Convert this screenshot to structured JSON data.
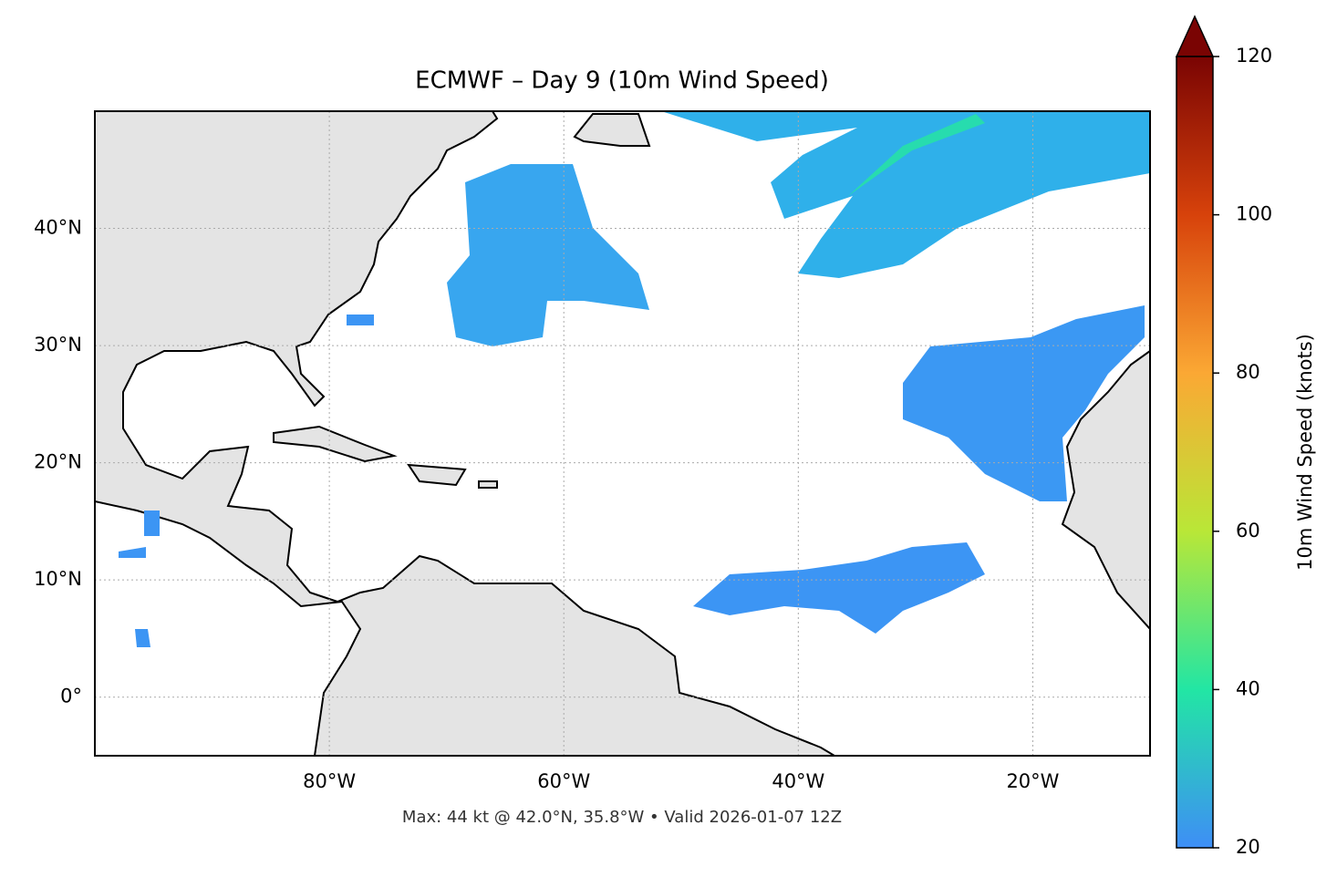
{
  "chart_data": {
    "type": "map",
    "title": "ECMWF – Day 9 (10m Wind Speed)",
    "footer": "Max: 44 kt @ 42.0°N, 35.8°W • Valid 2026-01-07 12Z",
    "xlim": [
      -100,
      -10
    ],
    "ylim": [
      -5,
      50
    ],
    "xticks": [
      {
        "value": -80,
        "label": "80°W"
      },
      {
        "value": -60,
        "label": "60°W"
      },
      {
        "value": -40,
        "label": "40°W"
      },
      {
        "value": -20,
        "label": "20°W"
      }
    ],
    "yticks": [
      {
        "value": 0,
        "label": "0°"
      },
      {
        "value": 10,
        "label": "10°N"
      },
      {
        "value": 20,
        "label": "20°N"
      },
      {
        "value": 30,
        "label": "30°N"
      },
      {
        "value": 40,
        "label": "40°N"
      }
    ],
    "grid": true,
    "colorbar": {
      "label": "10m Wind Speed (knots)",
      "lim": [
        20,
        120
      ],
      "ticks": [
        20,
        40,
        60,
        80,
        100,
        120
      ],
      "colors": [
        "#3e8ef6",
        "#22e6a4",
        "#b9e737",
        "#fba834",
        "#d7420b",
        "#7a0403"
      ]
    }
  }
}
